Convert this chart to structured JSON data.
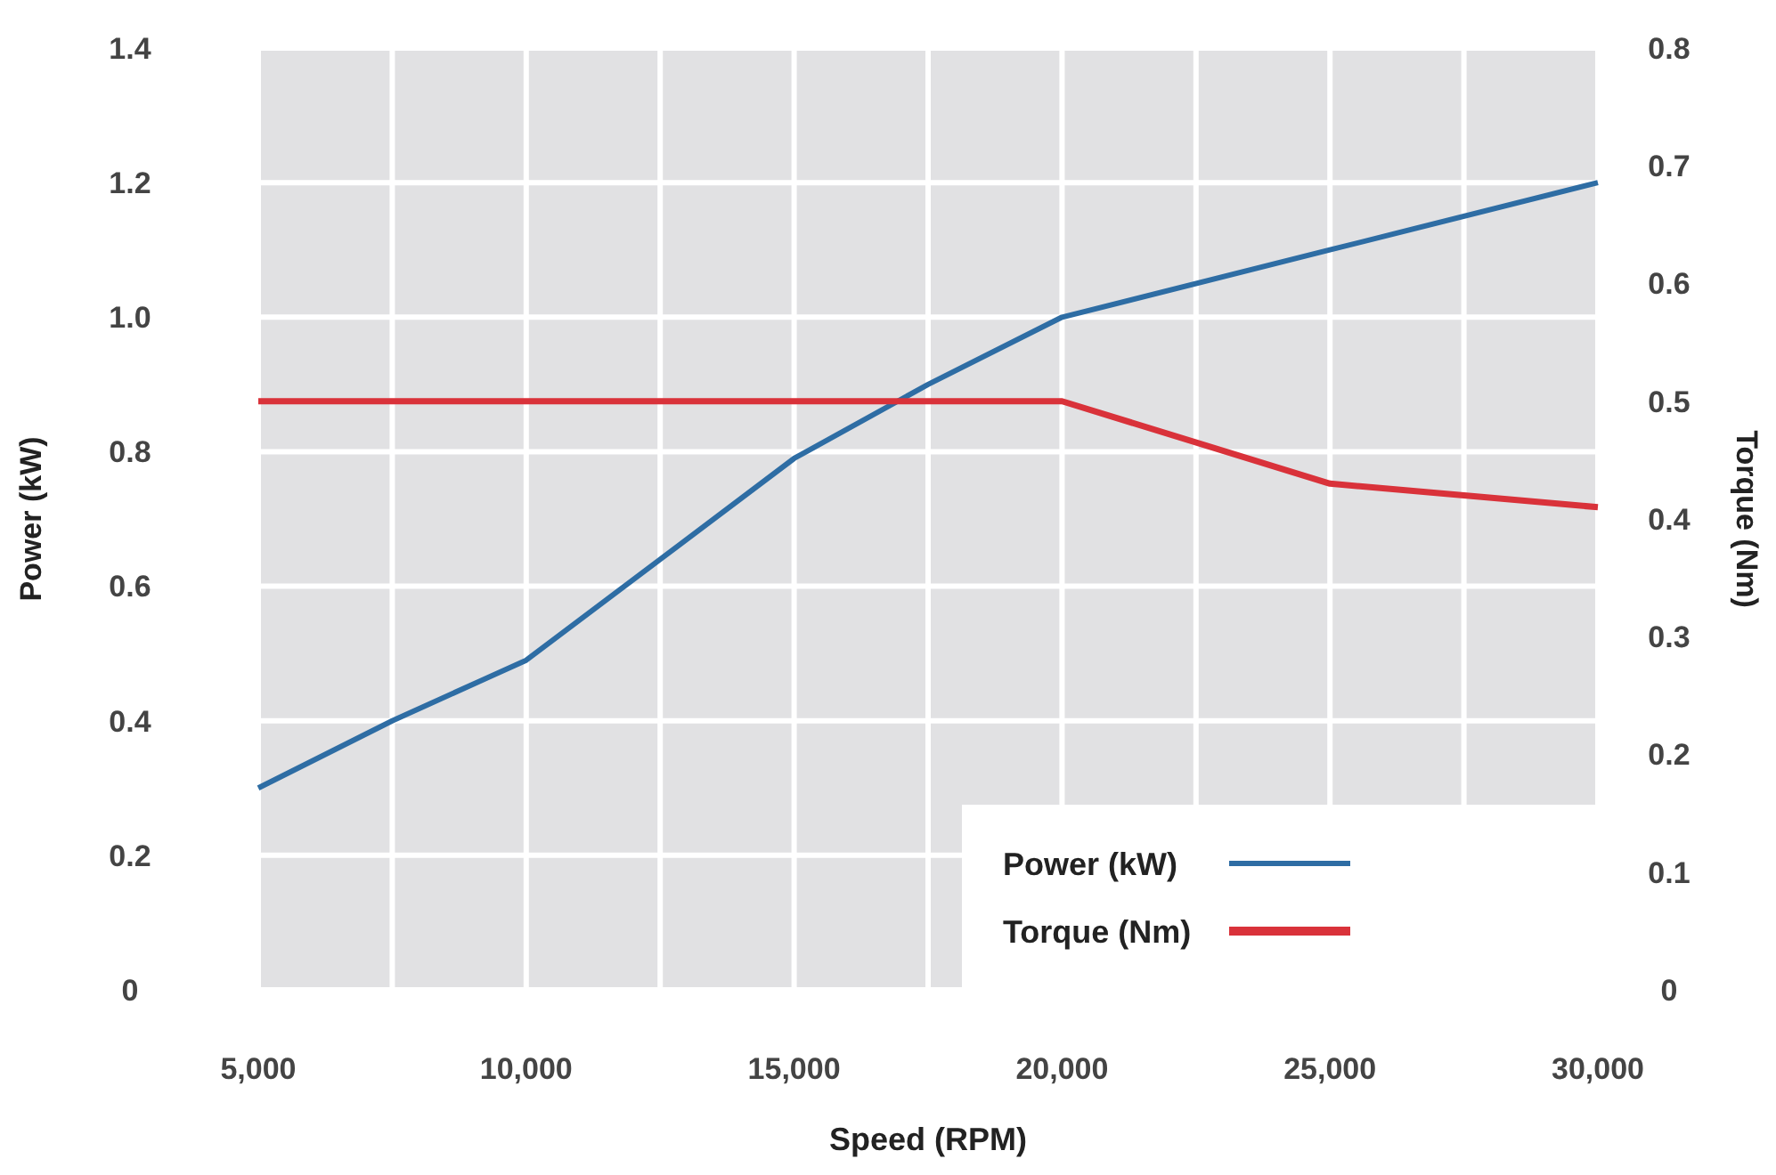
{
  "chart_data": {
    "type": "line",
    "xlabel": "Speed (RPM)",
    "ylabel": "Power (kW)",
    "y2label": "Torque (Nm)",
    "xlim": [
      5000,
      30000
    ],
    "xticks": [
      {
        "value": 5000,
        "label": "5,000"
      },
      {
        "value": 7500,
        "label": null
      },
      {
        "value": 10000,
        "label": "10,000"
      },
      {
        "value": 12500,
        "label": null
      },
      {
        "value": 15000,
        "label": "15,000"
      },
      {
        "value": 17500,
        "label": null
      },
      {
        "value": 20000,
        "label": "20,000"
      },
      {
        "value": 22500,
        "label": null
      },
      {
        "value": 25000,
        "label": "25,000"
      },
      {
        "value": 27500,
        "label": null
      },
      {
        "value": 30000,
        "label": "30,000"
      }
    ],
    "ylim": [
      0,
      1.4
    ],
    "yticks": [
      0,
      0.2,
      0.4,
      0.6,
      0.8,
      {
        "value": 1,
        "label": "1.0"
      },
      1.2,
      1.4
    ],
    "y2lim": [
      0,
      0.8
    ],
    "y2ticks": [
      0,
      0.1,
      0.2,
      0.3,
      0.4,
      0.5,
      0.6,
      0.7,
      0.8
    ],
    "grid": true,
    "legend": "bottom right",
    "line_style": "solid",
    "marker": "none",
    "series": [
      {
        "name": "Power (kW)",
        "color": "#2e6da4",
        "x": [
          5000,
          7500,
          10000,
          12500,
          15000,
          17500,
          20000,
          25000,
          30000
        ],
        "values": [
          0.3,
          0.4,
          0.49,
          0.64,
          0.79,
          0.9,
          1.0,
          1.1,
          1.2
        ]
      },
      {
        "name": "Torque (Nm)",
        "color": "#d9323a",
        "axis": "y2",
        "x": [
          5000,
          20000,
          25000,
          27500,
          30000
        ],
        "values": [
          0.5,
          0.5,
          0.43,
          0.42,
          0.41
        ]
      }
    ]
  }
}
